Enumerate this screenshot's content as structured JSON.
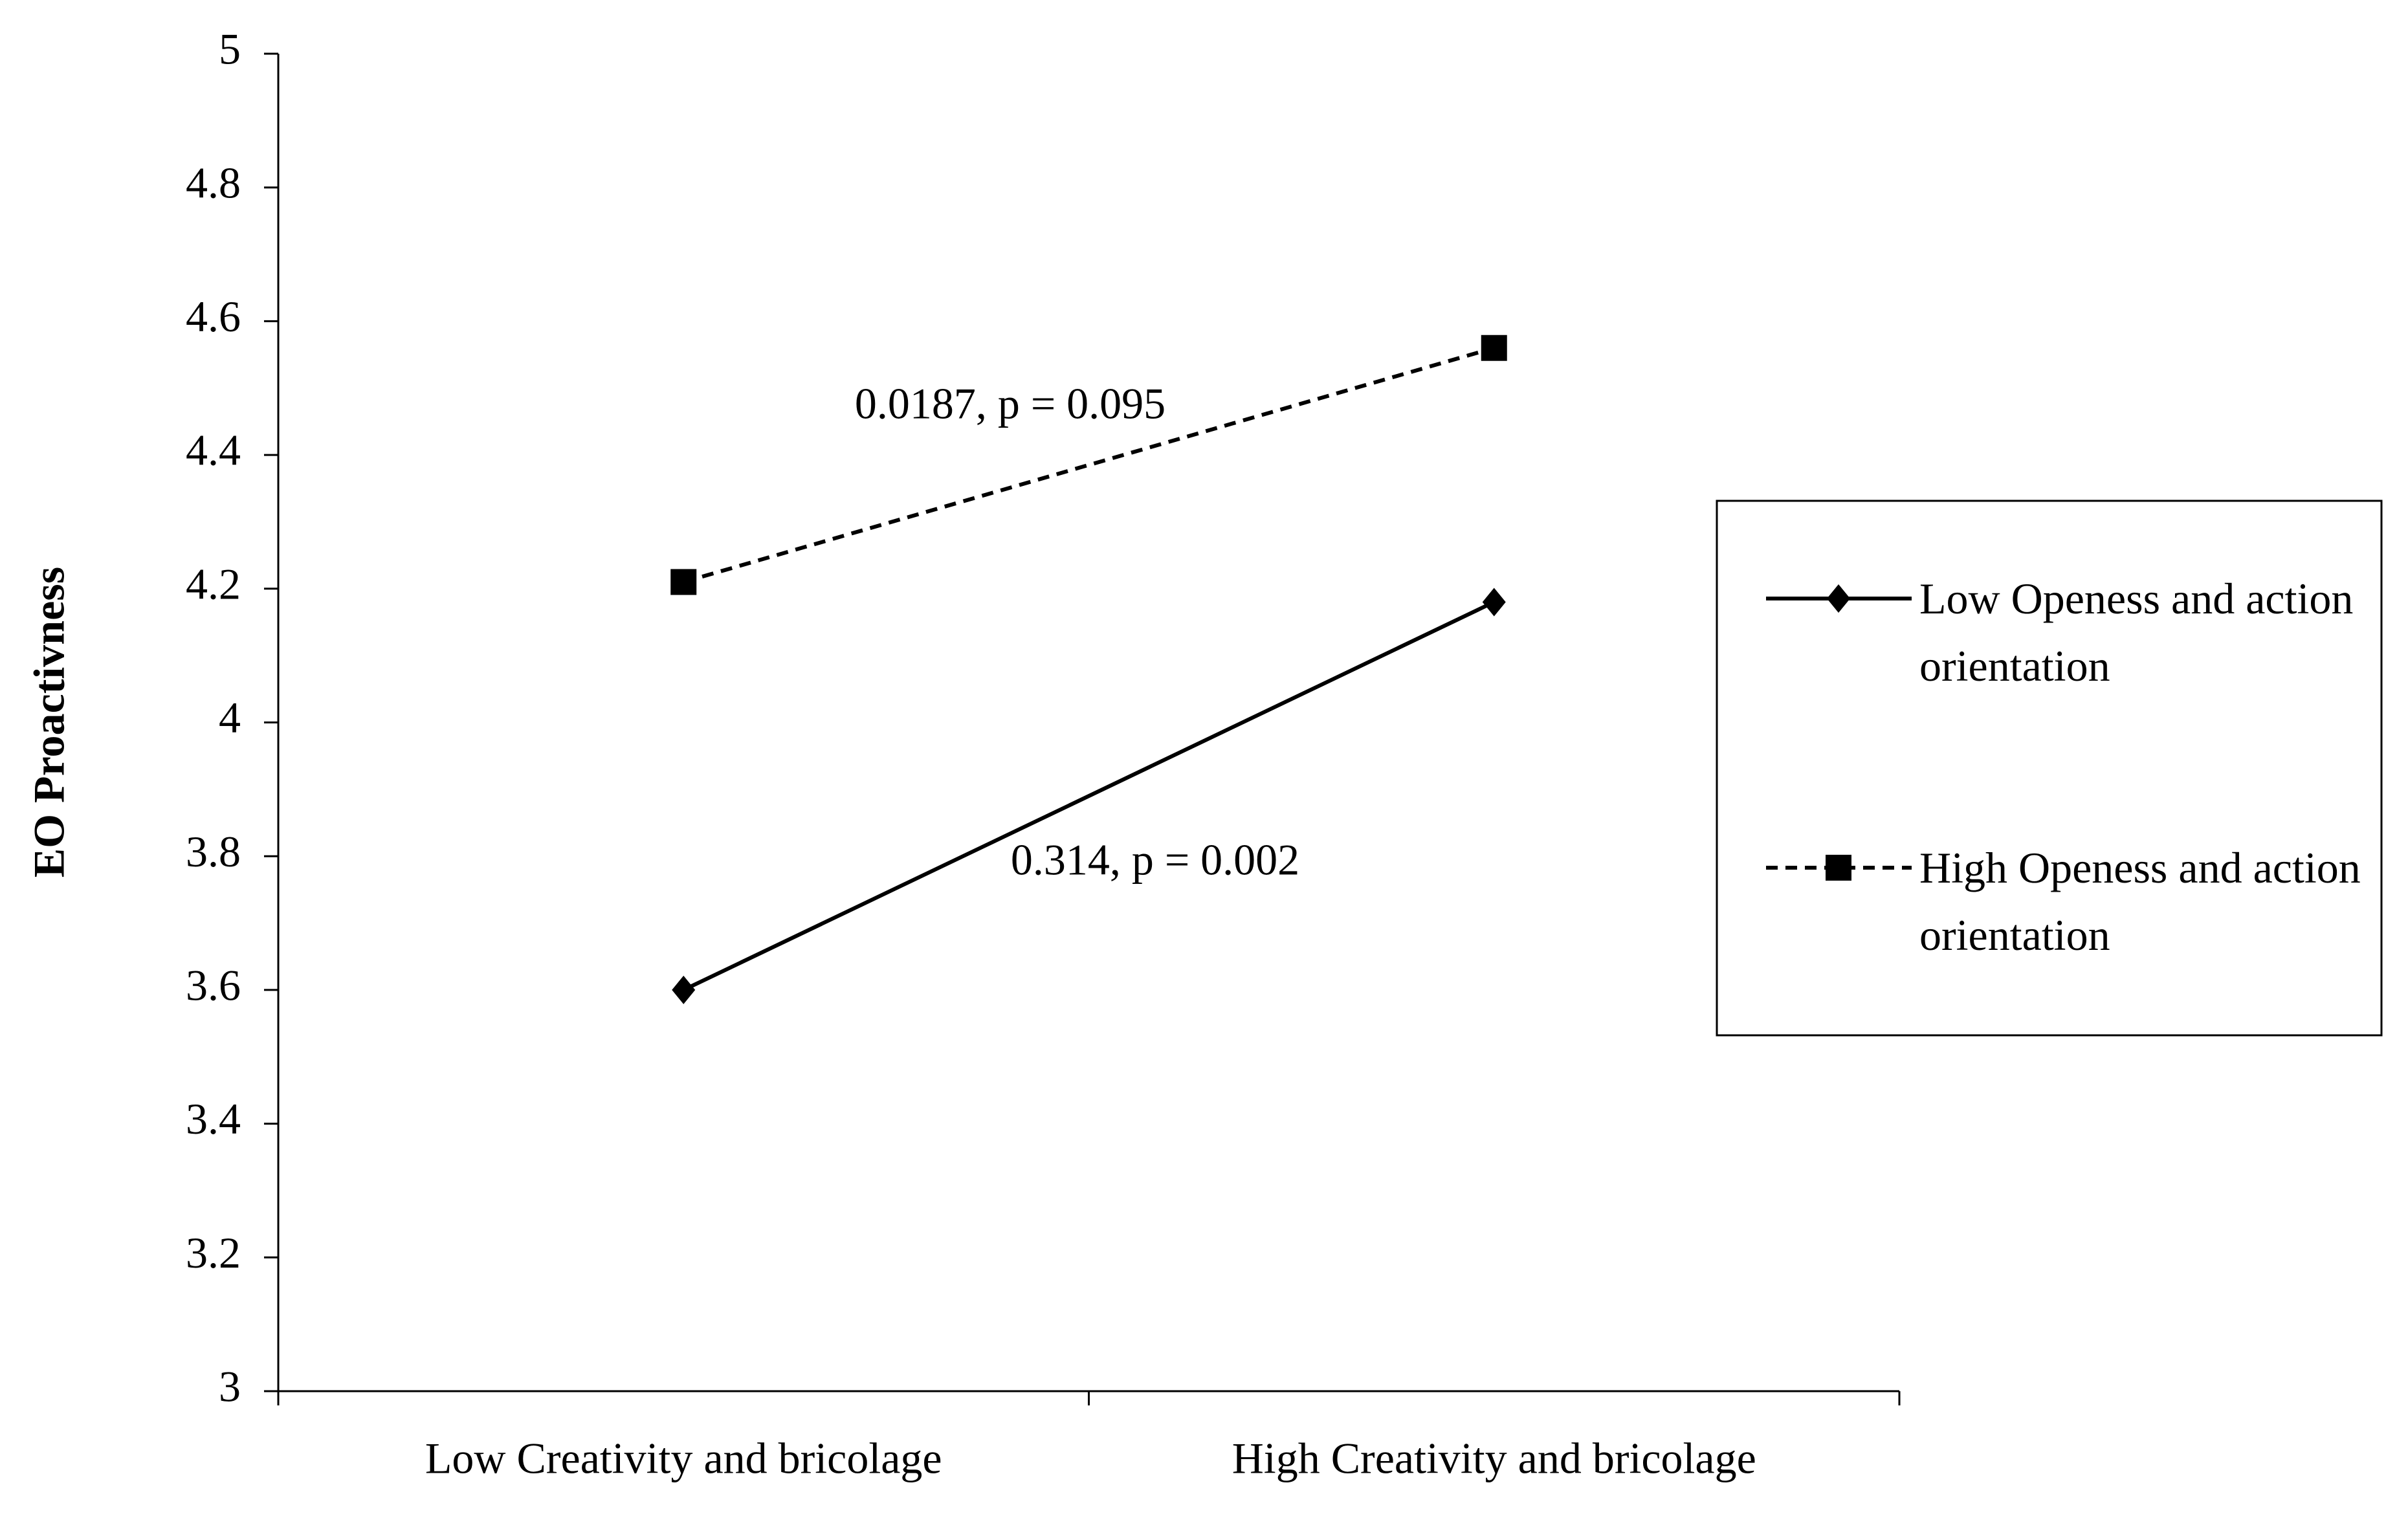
{
  "chart_data": {
    "type": "line",
    "y_label": "EO Proactivness",
    "categories": [
      "Low Creativity and bricolage",
      "High Creativity and bricolage"
    ],
    "series": [
      {
        "name": "Low Openess and action orientation",
        "color": "#000000",
        "marker": "diamond",
        "line_style": "solid",
        "values": [
          3.6,
          4.18
        ]
      },
      {
        "name": "High Openess and action orientation",
        "color": "#000000",
        "marker": "square",
        "line_style": "dashed",
        "values": [
          4.21,
          4.56
        ]
      }
    ],
    "annotations": [
      "0.0187, p = 0.095",
      "0.314, p = 0.002"
    ],
    "ylim": [
      3,
      5
    ],
    "yticks": [
      3,
      3.2,
      3.4,
      3.6,
      3.8,
      4,
      4.2,
      4.4,
      4.6,
      4.8,
      5
    ],
    "grid": false,
    "legend": "right"
  }
}
